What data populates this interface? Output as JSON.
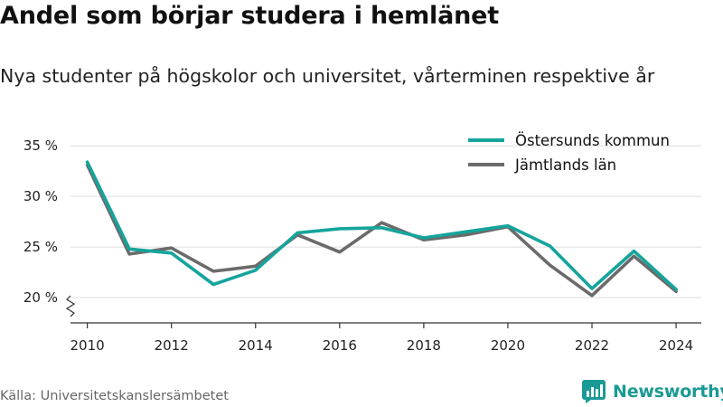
{
  "title": "Andel som börjar studera i hemlänet",
  "subtitle": "Nya studenter på högskolor och universitet, vårterminen respektive år",
  "source": "Källa: Universitetskanslersämbetet",
  "brand": {
    "name": "Newsworthy",
    "icon": "bar-chart-icon",
    "color": "#1a9a94"
  },
  "chart_data": {
    "type": "line",
    "x": [
      2010,
      2011,
      2012,
      2013,
      2014,
      2015,
      2016,
      2017,
      2018,
      2019,
      2020,
      2021,
      2022,
      2023,
      2024
    ],
    "x_ticks": [
      "2010",
      "2012",
      "2014",
      "2016",
      "2018",
      "2020",
      "2022",
      "2024"
    ],
    "y_ticks": [
      "20 %",
      "25 %",
      "30 %",
      "35 %"
    ],
    "y_tick_values": [
      20,
      25,
      30,
      35
    ],
    "ylim": [
      17.5,
      36
    ],
    "xlim": [
      2009.6,
      2024.6
    ],
    "axis_break": true,
    "grid": true,
    "legend_position": "top-right",
    "series": [
      {
        "name": "Östersunds kommun",
        "color": "#15a49c",
        "values": [
          33.4,
          24.8,
          24.4,
          21.3,
          22.7,
          26.4,
          26.8,
          26.9,
          25.9,
          26.5,
          27.1,
          25.1,
          20.9,
          24.6,
          20.8
        ]
      },
      {
        "name": "Jämtlands län",
        "color": "#6b6b6b",
        "values": [
          33.1,
          24.3,
          24.9,
          22.6,
          23.1,
          26.2,
          24.5,
          27.4,
          25.7,
          26.2,
          27.0,
          23.2,
          20.2,
          24.1,
          20.6
        ]
      }
    ]
  }
}
